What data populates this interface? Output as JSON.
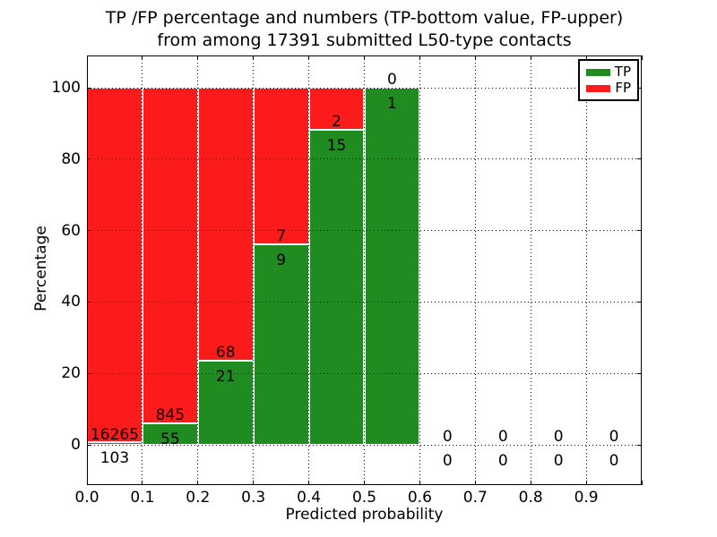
{
  "title": {
    "line1": "TP /FP percentage and numbers (TP-bottom value, FP-upper)",
    "line2": "from among 17391 submitted L50-type contacts"
  },
  "axes": {
    "xlabel": "Predicted probability",
    "ylabel": "Percentage",
    "ytick_labels": [
      "0",
      "20",
      "40",
      "60",
      "80",
      "100"
    ],
    "ytick_values": [
      0,
      20,
      40,
      60,
      80,
      100
    ],
    "xtick_labels": [
      "0.0",
      "0.1",
      "0.2",
      "0.3",
      "0.4",
      "0.5",
      "0.6",
      "0.7",
      "0.8",
      "0.9"
    ],
    "xtick_values": [
      0,
      0.1,
      0.2,
      0.3,
      0.4,
      0.5,
      0.6,
      0.7,
      0.8,
      0.9
    ],
    "xlim": [
      0,
      1.0
    ],
    "ylim": [
      -11.3,
      109.6
    ],
    "grid": "dotted"
  },
  "legend": {
    "items": [
      {
        "label": "TP",
        "color": "#208b20"
      },
      {
        "label": "FP",
        "color": "#fb1b1b"
      }
    ]
  },
  "chart_data": {
    "type": "bar",
    "stacked": true,
    "title": "TP /FP percentage and numbers (TP-bottom value, FP-upper) from among 17391 submitted L50-type contacts",
    "xlabel": "Predicted probability",
    "ylabel": "Percentage",
    "total_submitted": 17391,
    "colors": {
      "tp": "#208b20",
      "fp": "#fb1b1b"
    },
    "categories": [
      "0.0-0.1",
      "0.1-0.2",
      "0.2-0.3",
      "0.3-0.4",
      "0.4-0.5",
      "0.5-0.6",
      "0.6-0.7",
      "0.7-0.8",
      "0.8-0.9",
      "0.9-1.0"
    ],
    "series": [
      {
        "name": "TP",
        "counts": [
          103,
          55,
          21,
          9,
          15,
          1,
          0,
          0,
          0,
          0
        ]
      },
      {
        "name": "FP",
        "counts": [
          16265,
          845,
          68,
          7,
          2,
          0,
          0,
          0,
          0,
          0
        ]
      }
    ],
    "bins": [
      {
        "x0": 0.0,
        "x1": 0.1,
        "tp": 103,
        "fp": 16265,
        "tp_pct": 0.63,
        "fp_pct": 99.37
      },
      {
        "x0": 0.1,
        "x1": 0.2,
        "tp": 55,
        "fp": 845,
        "tp_pct": 6.11,
        "fp_pct": 93.89
      },
      {
        "x0": 0.2,
        "x1": 0.3,
        "tp": 21,
        "fp": 68,
        "tp_pct": 23.6,
        "fp_pct": 76.4
      },
      {
        "x0": 0.3,
        "x1": 0.4,
        "tp": 9,
        "fp": 7,
        "tp_pct": 56.25,
        "fp_pct": 43.75
      },
      {
        "x0": 0.4,
        "x1": 0.5,
        "tp": 15,
        "fp": 2,
        "tp_pct": 88.24,
        "fp_pct": 11.76
      },
      {
        "x0": 0.5,
        "x1": 0.6,
        "tp": 1,
        "fp": 0,
        "tp_pct": 100,
        "fp_pct": 0
      },
      {
        "x0": 0.6,
        "x1": 0.7,
        "tp": 0,
        "fp": 0,
        "tp_pct": 0,
        "fp_pct": 0
      },
      {
        "x0": 0.7,
        "x1": 0.8,
        "tp": 0,
        "fp": 0,
        "tp_pct": 0,
        "fp_pct": 0
      },
      {
        "x0": 0.8,
        "x1": 0.9,
        "tp": 0,
        "fp": 0,
        "tp_pct": 0,
        "fp_pct": 0
      },
      {
        "x0": 0.9,
        "x1": 1.0,
        "tp": 0,
        "fp": 0,
        "tp_pct": 0,
        "fp_pct": 0
      }
    ]
  }
}
